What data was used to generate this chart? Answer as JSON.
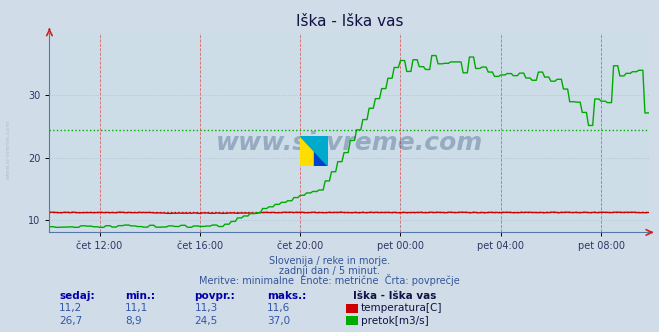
{
  "title": "Iška - Iška vas",
  "bg_color": "#d0dce8",
  "plot_bg_color": "#ccdde8",
  "line_color_temp": "#cc0000",
  "line_color_flow": "#00aa00",
  "avg_temp": 11.3,
  "avg_flow": 24.5,
  "ylim": [
    8,
    40
  ],
  "yticks": [
    10,
    20,
    30
  ],
  "xlabel_ticks": [
    "čet 12:00",
    "čet 16:00",
    "čet 20:00",
    "pet 00:00",
    "pet 04:00",
    "pet 08:00"
  ],
  "subtitle1": "Slovenija / reke in morje.",
  "subtitle2": "zadnji dan / 5 minut.",
  "subtitle3": "Meritve: minimalne  Enote: metrične  Črta: povprečje",
  "legend_title": "Iška - Iška vas",
  "legend_temp": "temperatura[C]",
  "legend_flow": "pretok[m3/s]",
  "table_headers": [
    "sedaj:",
    "min.:",
    "povpr.:",
    "maks.:"
  ],
  "table_temp": [
    "11,2",
    "11,1",
    "11,3",
    "11,6"
  ],
  "table_flow": [
    "26,7",
    "8,9",
    "24,5",
    "37,0"
  ],
  "watermark": "www.si-vreme.com",
  "watermark_color": "#1a3a6a",
  "sidebar_text": "www.si-vreme.com",
  "n_points": 288,
  "tick_positions": [
    24,
    72,
    120,
    168,
    216,
    264
  ]
}
